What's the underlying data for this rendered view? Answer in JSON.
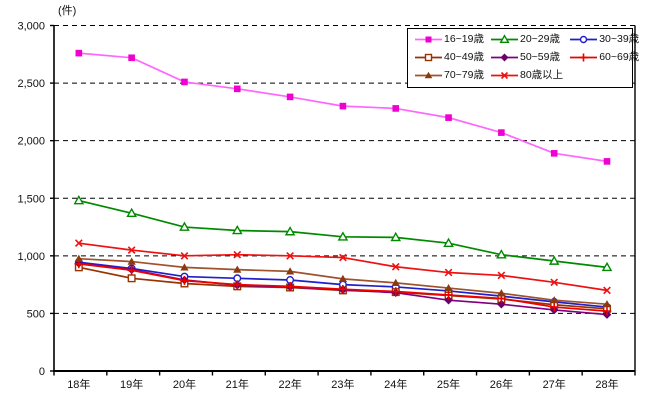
{
  "chart_data": {
    "type": "line",
    "title": "",
    "unit_label": "(件)",
    "xlabel": "",
    "ylabel": "件",
    "ylim": [
      0,
      3000
    ],
    "ytick_interval": 500,
    "ytick_labels": [
      "0",
      "500",
      "1,000",
      "1,500",
      "2,000",
      "2,500",
      "3,000"
    ],
    "grid": "horizontal dashed black lines every 500",
    "legend_position": "top-right inside plot, 3 columns, boxed",
    "categories": [
      "18年",
      "19年",
      "20年",
      "21年",
      "22年",
      "23年",
      "24年",
      "25年",
      "26年",
      "27年",
      "28年"
    ],
    "series": [
      {
        "id": "16-19",
        "name": "16~19歳",
        "marker": "square-filled",
        "line_color": "#FF66FF",
        "marker_color": "#EE00D0",
        "values": [
          2760,
          2720,
          2510,
          2450,
          2380,
          2300,
          2280,
          2200,
          2070,
          1890,
          1820
        ]
      },
      {
        "id": "20-29",
        "name": "20~29歳",
        "marker": "triangle-open",
        "line_color": "#008A00",
        "marker_color": "#008A00",
        "values": [
          1480,
          1370,
          1250,
          1220,
          1210,
          1165,
          1160,
          1110,
          1010,
          955,
          900
        ]
      },
      {
        "id": "30-39",
        "name": "30~39歳",
        "marker": "circle-open",
        "line_color": "#1F1FCC",
        "marker_color": "#1F1FCC",
        "values": [
          945,
          890,
          820,
          805,
          790,
          750,
          730,
          695,
          650,
          600,
          555
        ]
      },
      {
        "id": "40-49",
        "name": "40~49歳",
        "marker": "square-open",
        "line_color": "#993300",
        "marker_color": "#993300",
        "values": [
          900,
          805,
          760,
          735,
          725,
          700,
          685,
          655,
          625,
          575,
          540
        ]
      },
      {
        "id": "50-59",
        "name": "50~59歳",
        "marker": "diamond-filled",
        "line_color": "#800080",
        "marker_color": "#6A006A",
        "values": [
          935,
          880,
          790,
          745,
          730,
          705,
          680,
          615,
          580,
          530,
          490
        ]
      },
      {
        "id": "60-69",
        "name": "60~69歳",
        "marker": "plus",
        "line_color": "#EE0000",
        "marker_color": "#EE0000",
        "values": [
          930,
          875,
          785,
          750,
          735,
          710,
          690,
          660,
          630,
          555,
          520
        ]
      },
      {
        "id": "70-79",
        "name": "70~79歳",
        "marker": "triangle-filled",
        "line_color": "#A0522D",
        "marker_color": "#8B3A10",
        "values": [
          975,
          950,
          900,
          880,
          865,
          800,
          765,
          720,
          675,
          615,
          580
        ]
      },
      {
        "id": "80-plus",
        "name": "80歳以上",
        "marker": "x",
        "line_color": "#EE1111",
        "marker_color": "#EE1111",
        "values": [
          1110,
          1050,
          1000,
          1010,
          1000,
          985,
          905,
          855,
          830,
          770,
          700
        ]
      }
    ]
  }
}
